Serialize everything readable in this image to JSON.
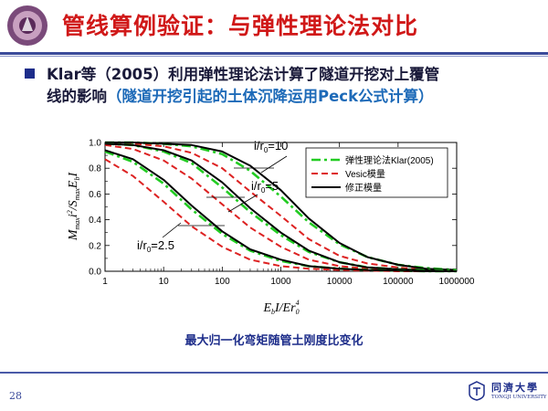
{
  "slide": {
    "title": "管线算例验证：与弹性理论法对比",
    "bullet_line1": "Klar等（2005）利用弹性理论法计算了隧道开挖对上覆管",
    "bullet_line2_main": "线的影响",
    "bullet_line2_note": "（隧道开挖引起的土体沉降运用Peck公式计算）",
    "caption": "最大归一化弯矩随管土刚度比变化",
    "page_number": "28",
    "university_name": "同濟大學",
    "university_name_en": "TONGJI UNIVERSITY",
    "colors": {
      "title": "#d01818",
      "accent": "#1d2d8a",
      "note": "#1d6ab8"
    }
  },
  "chart_data": {
    "type": "line",
    "xscale": "log",
    "xlim": [
      1,
      1000000
    ],
    "ylim": [
      0.0,
      1.0
    ],
    "x_ticks": [
      "1",
      "10",
      "100",
      "1000",
      "10000",
      "100000",
      "1000000"
    ],
    "y_ticks": [
      "0.0",
      "0.2",
      "0.4",
      "0.6",
      "0.8",
      "1.0"
    ],
    "xlabel": {
      "base": "E",
      "sub1": "b",
      "mid": "I/Er",
      "sub2": "0",
      "sup2": "4"
    },
    "ylabel": {
      "M": "M",
      "Msub": "max",
      "i": "i",
      "sup": "2",
      "S": "/S",
      "Ssub": "max",
      "E": "E",
      "Esub": "b",
      "I": "I"
    },
    "annotations": [
      {
        "label": "i/r",
        "sub": "0",
        "value": "=10"
      },
      {
        "label": "i/r",
        "sub": "0",
        "value": "=5"
      },
      {
        "label": "i/r",
        "sub": "0",
        "value": "=2.5"
      }
    ],
    "legend": [
      {
        "label": "弹性理论法Klar(2005)",
        "style": "dashdot",
        "color": "#22cc22"
      },
      {
        "label": "Vesic模量",
        "style": "dashed",
        "color": "#dd2222"
      },
      {
        "label": "修正模量",
        "style": "solid",
        "color": "#000000"
      }
    ],
    "legend_position": "top-right",
    "x": [
      1,
      3,
      10,
      30,
      100,
      300,
      1000,
      3000,
      10000,
      30000,
      100000,
      300000,
      1000000
    ],
    "series": [
      {
        "name": "弹性理论法Klar(2005)",
        "group": "i/r0=10",
        "values": [
          1.0,
          1.0,
          0.99,
          0.97,
          0.91,
          0.78,
          0.58,
          0.38,
          0.21,
          0.11,
          0.05,
          0.025,
          0.01
        ]
      },
      {
        "name": "Vesic模量",
        "group": "i/r0=10",
        "values": [
          1.0,
          0.99,
          0.97,
          0.92,
          0.8,
          0.62,
          0.43,
          0.25,
          0.12,
          0.06,
          0.03,
          0.01,
          0.005
        ]
      },
      {
        "name": "修正模量",
        "group": "i/r0=10",
        "values": [
          1.0,
          1.0,
          0.99,
          0.98,
          0.93,
          0.82,
          0.63,
          0.41,
          0.22,
          0.11,
          0.05,
          0.02,
          0.01
        ]
      },
      {
        "name": "弹性理论法Klar(2005)",
        "group": "i/r0=5",
        "values": [
          0.99,
          0.98,
          0.93,
          0.84,
          0.65,
          0.46,
          0.28,
          0.15,
          0.07,
          0.03,
          0.015,
          0.01,
          0.005
        ]
      },
      {
        "name": "Vesic模量",
        "group": "i/r0=5",
        "values": [
          0.98,
          0.95,
          0.86,
          0.72,
          0.52,
          0.34,
          0.19,
          0.09,
          0.04,
          0.02,
          0.01,
          0.005,
          0.0
        ]
      },
      {
        "name": "修正模量",
        "group": "i/r0=5",
        "values": [
          0.99,
          0.98,
          0.94,
          0.86,
          0.69,
          0.49,
          0.3,
          0.16,
          0.07,
          0.03,
          0.015,
          0.008,
          0.0
        ]
      },
      {
        "name": "弹性理论法Klar(2005)",
        "group": "i/r0=2.5",
        "values": [
          0.93,
          0.85,
          0.68,
          0.48,
          0.29,
          0.16,
          0.08,
          0.04,
          0.02,
          0.01,
          0.005,
          0.0,
          0.0
        ]
      },
      {
        "name": "Vesic模量",
        "group": "i/r0=2.5",
        "values": [
          0.87,
          0.74,
          0.54,
          0.35,
          0.19,
          0.09,
          0.04,
          0.02,
          0.01,
          0.005,
          0.0,
          0.0,
          0.0
        ]
      },
      {
        "name": "修正模量",
        "group": "i/r0=2.5",
        "values": [
          0.94,
          0.87,
          0.71,
          0.51,
          0.31,
          0.17,
          0.09,
          0.04,
          0.02,
          0.01,
          0.005,
          0.0,
          0.0
        ]
      }
    ]
  }
}
